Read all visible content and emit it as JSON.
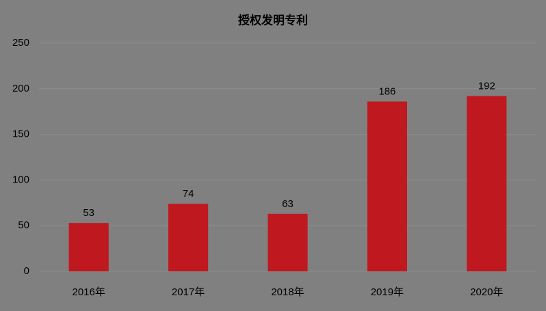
{
  "chart_data": {
    "type": "bar",
    "title": "授权发明专利",
    "categories": [
      "2016年",
      "2017年",
      "2018年",
      "2019年",
      "2020年"
    ],
    "values": [
      53,
      74,
      63,
      186,
      192
    ],
    "color": "#c0181f",
    "ylim": [
      0,
      250
    ],
    "yticks": [
      0,
      50,
      100,
      150,
      200,
      250
    ],
    "grid": true
  }
}
